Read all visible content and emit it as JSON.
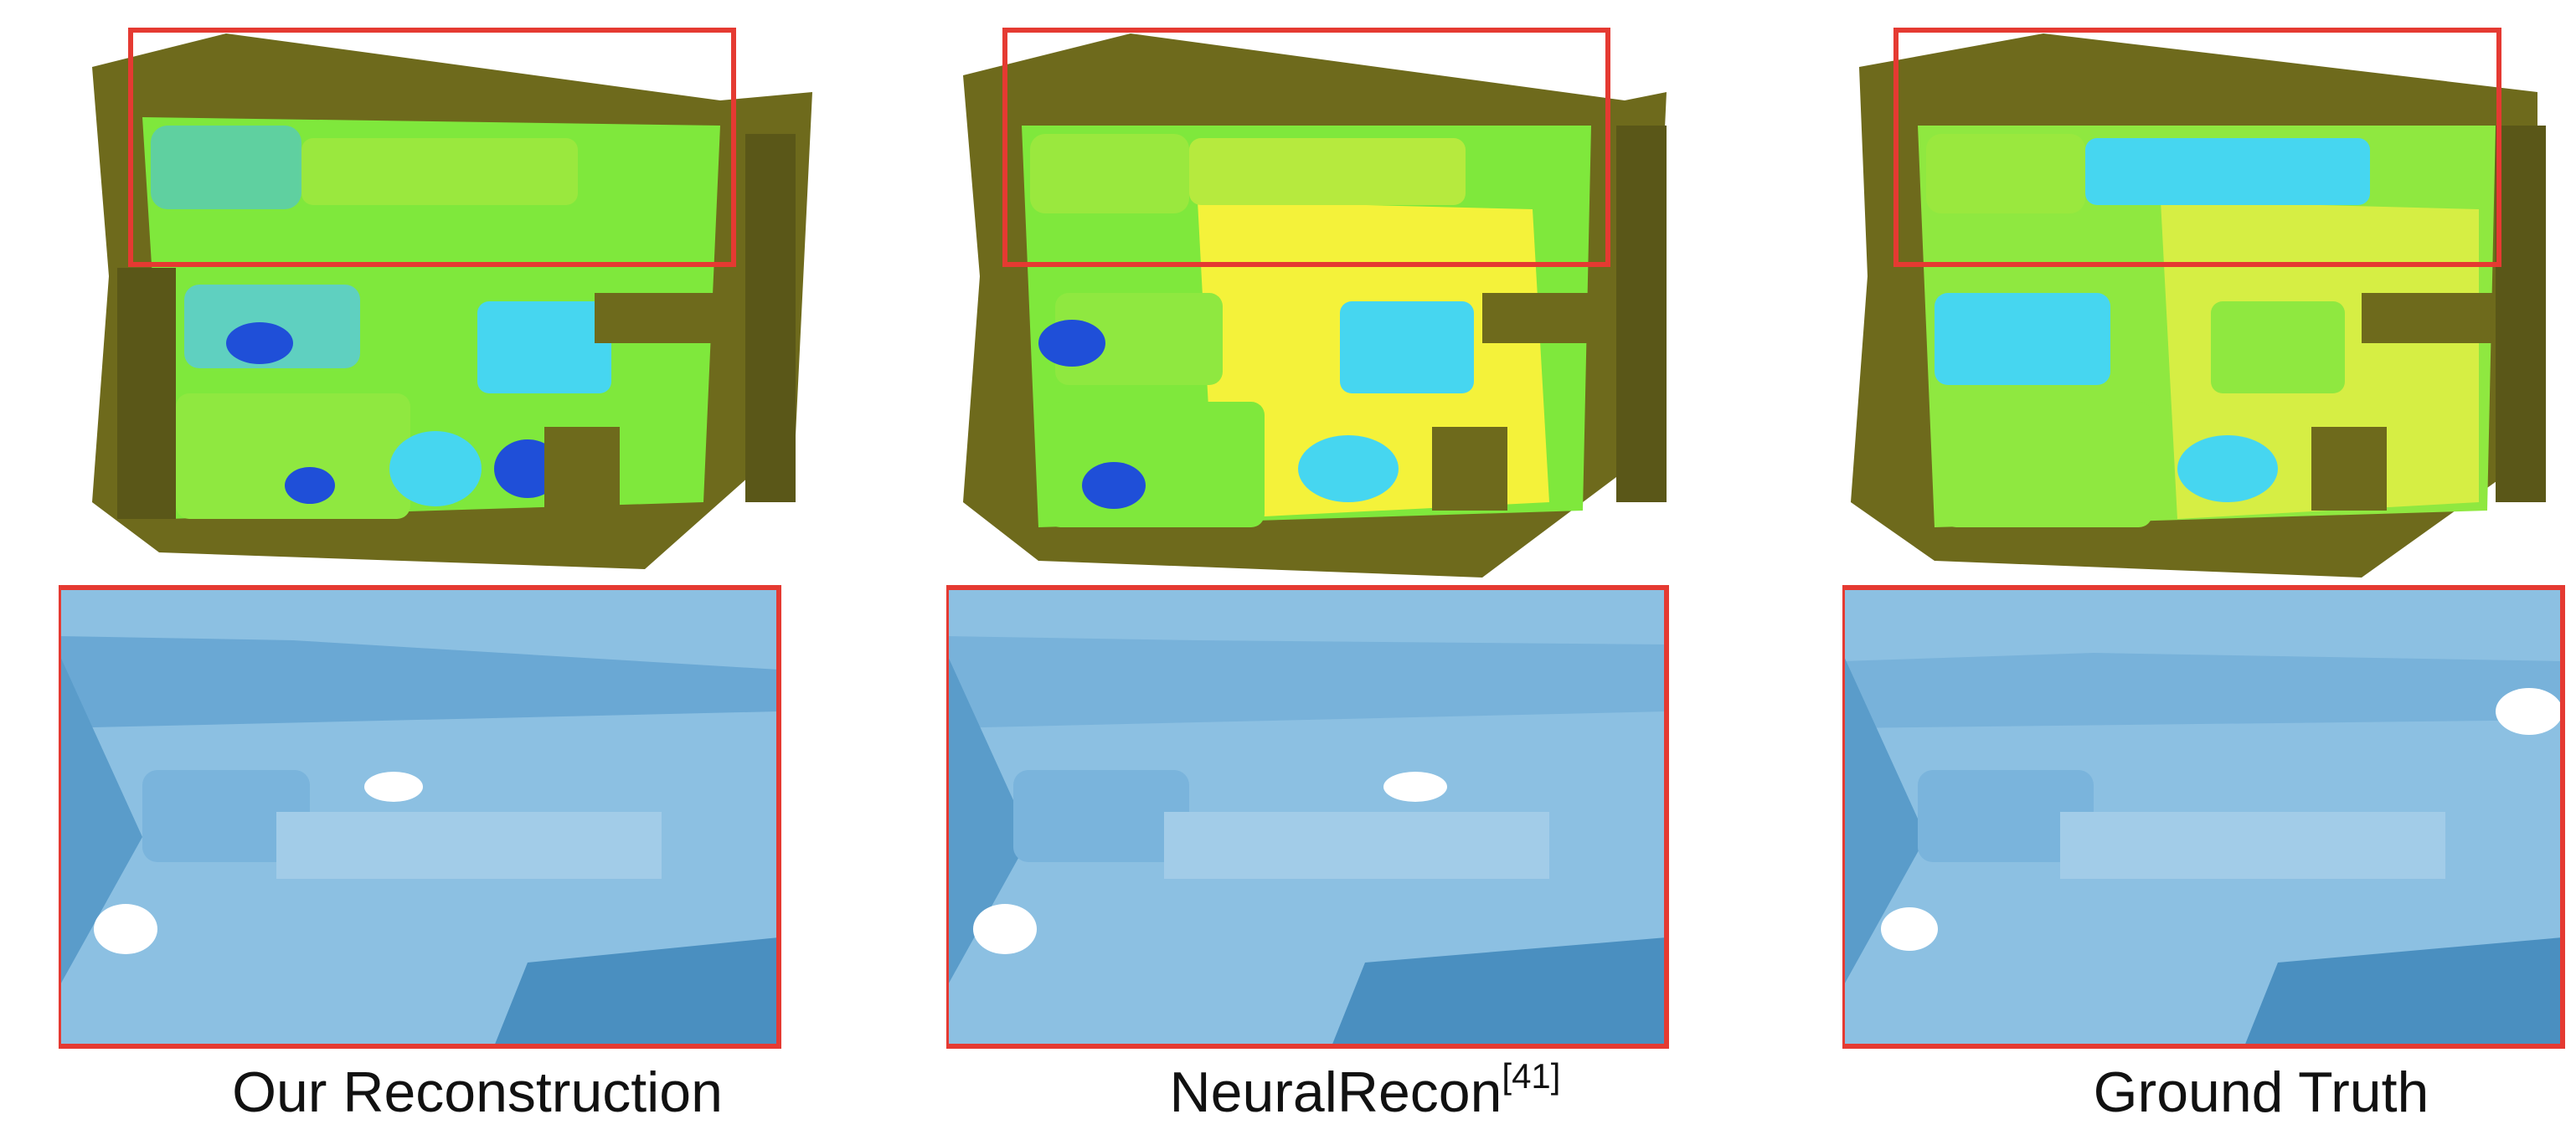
{
  "figure": {
    "panels": [
      {
        "id": "ours",
        "caption": "Our Reconstruction",
        "citation": ""
      },
      {
        "id": "neuralrecon",
        "caption": "NeuralRecon",
        "citation": "[41]"
      },
      {
        "id": "gt",
        "caption": "Ground Truth",
        "citation": ""
      }
    ],
    "colors": {
      "highlight_box": "#e53a32",
      "wall": "#6e6a1c",
      "floor": "#7fe83c",
      "floor_yellow": "#f4f23a",
      "error_blue": "#1f4fd8",
      "error_cyan": "#46d6f0",
      "mesh_blue": "#7fb8dc",
      "mesh_dark": "#4a8fc0"
    }
  }
}
